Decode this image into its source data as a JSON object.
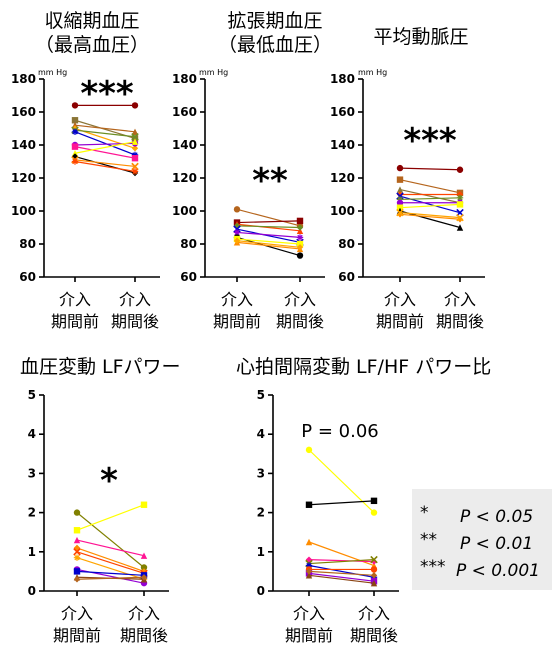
{
  "chart_data": [
    {
      "type": "line",
      "title": "収縮期血圧\n（最高血圧）",
      "unit": "mm Hg",
      "ylim": [
        60,
        180
      ],
      "yticks": [
        60,
        80,
        100,
        120,
        140,
        160,
        180
      ],
      "categories": [
        "介入\n期間前",
        "介入\n期間後"
      ],
      "significance": "***",
      "series": [
        {
          "color": "#8b0000",
          "values": [
            164,
            164
          ]
        },
        {
          "color": "#8b7536",
          "values": [
            155,
            144
          ]
        },
        {
          "color": "#b5651d",
          "values": [
            152,
            148
          ]
        },
        {
          "color": "#ffa500",
          "values": [
            150,
            138
          ]
        },
        {
          "color": "#6b8e23",
          "values": [
            149,
            145
          ]
        },
        {
          "color": "#0000cd",
          "values": [
            148,
            134
          ]
        },
        {
          "color": "#9400d3",
          "values": [
            140,
            141
          ]
        },
        {
          "color": "#ff1493",
          "values": [
            139,
            132
          ]
        },
        {
          "color": "#ffff00",
          "values": [
            135,
            142
          ]
        },
        {
          "color": "#000000",
          "values": [
            133,
            123
          ]
        },
        {
          "color": "#ff8c00",
          "values": [
            131,
            127
          ]
        },
        {
          "color": "#ff4500",
          "values": [
            130,
            124
          ]
        }
      ]
    },
    {
      "type": "line",
      "title": "拡張期血圧\n（最低血圧）",
      "unit": "mm Hg",
      "ylim": [
        60,
        180
      ],
      "yticks": [
        60,
        80,
        100,
        120,
        140,
        160,
        180
      ],
      "categories": [
        "介入\n期間前",
        "介入\n期間後"
      ],
      "significance": "**",
      "series": [
        {
          "color": "#b5651d",
          "values": [
            101,
            91
          ]
        },
        {
          "color": "#8b0000",
          "values": [
            93,
            94
          ]
        },
        {
          "color": "#ff4500",
          "values": [
            92,
            88
          ]
        },
        {
          "color": "#6b8e23",
          "values": [
            91,
            90
          ]
        },
        {
          "color": "#0000cd",
          "values": [
            89,
            81
          ]
        },
        {
          "color": "#9400d3",
          "values": [
            87,
            84
          ]
        },
        {
          "color": "#000000",
          "values": [
            84,
            73
          ]
        },
        {
          "color": "#ffff00",
          "values": [
            83,
            80
          ]
        },
        {
          "color": "#ff8c00",
          "values": [
            81,
            77
          ]
        },
        {
          "color": "#ffa500",
          "values": [
            82,
            78
          ]
        }
      ]
    },
    {
      "type": "line",
      "title": "平均動脈圧",
      "unit": "mm Hg",
      "ylim": [
        60,
        180
      ],
      "yticks": [
        60,
        80,
        100,
        120,
        140,
        160,
        180
      ],
      "categories": [
        "介入\n期間前",
        "介入\n期間後"
      ],
      "significance": "***",
      "series": [
        {
          "color": "#8b0000",
          "values": [
            126,
            125
          ]
        },
        {
          "color": "#b5651d",
          "values": [
            119,
            111
          ]
        },
        {
          "color": "#8b7536",
          "values": [
            113,
            105
          ]
        },
        {
          "color": "#ff4500",
          "values": [
            110,
            110
          ]
        },
        {
          "color": "#0000cd",
          "values": [
            109,
            99
          ]
        },
        {
          "color": "#6b8e23",
          "values": [
            107,
            108
          ]
        },
        {
          "color": "#9400d3",
          "values": [
            105,
            105
          ]
        },
        {
          "color": "#ffff00",
          "values": [
            102,
            104
          ]
        },
        {
          "color": "#000000",
          "values": [
            100,
            90
          ]
        },
        {
          "color": "#ff8c00",
          "values": [
            98,
            95
          ]
        },
        {
          "color": "#ffa500",
          "values": [
            99,
            96
          ]
        }
      ]
    },
    {
      "type": "line",
      "title": "血圧変動 LFパワー",
      "ylim": [
        0,
        5
      ],
      "yticks": [
        0,
        1,
        2,
        3,
        4,
        5
      ],
      "categories": [
        "介入\n期間前",
        "介入\n期間後"
      ],
      "significance": "*",
      "series": [
        {
          "color": "#808000",
          "values": [
            2.0,
            0.6
          ]
        },
        {
          "color": "#ffff00",
          "values": [
            1.55,
            2.2
          ]
        },
        {
          "color": "#ff1493",
          "values": [
            1.3,
            0.9
          ]
        },
        {
          "color": "#ff8c00",
          "values": [
            1.1,
            0.5
          ]
        },
        {
          "color": "#ff4500",
          "values": [
            1.0,
            0.45
          ]
        },
        {
          "color": "#ffa500",
          "values": [
            0.85,
            0.3
          ]
        },
        {
          "color": "#9400d3",
          "values": [
            0.55,
            0.2
          ]
        },
        {
          "color": "#0000cd",
          "values": [
            0.5,
            0.4
          ]
        },
        {
          "color": "#8b4513",
          "values": [
            0.35,
            0.3
          ]
        },
        {
          "color": "#b5651d",
          "values": [
            0.3,
            0.35
          ]
        }
      ]
    },
    {
      "type": "line",
      "title": "心拍間隔変動 LF/HF パワー比",
      "ylim": [
        0,
        5
      ],
      "yticks": [
        0,
        1,
        2,
        3,
        4,
        5
      ],
      "categories": [
        "介入\n期間前",
        "介入\n期間後"
      ],
      "annotation": "P = 0.06",
      "series": [
        {
          "color": "#ffff00",
          "values": [
            3.6,
            2.0
          ]
        },
        {
          "color": "#000000",
          "values": [
            2.2,
            2.3
          ]
        },
        {
          "color": "#ff8c00",
          "values": [
            1.25,
            0.65
          ]
        },
        {
          "color": "#ff1493",
          "values": [
            0.8,
            0.75
          ]
        },
        {
          "color": "#808000",
          "values": [
            0.7,
            0.8
          ]
        },
        {
          "color": "#0000cd",
          "values": [
            0.65,
            0.35
          ]
        },
        {
          "color": "#ff4500",
          "values": [
            0.55,
            0.55
          ]
        },
        {
          "color": "#9400d3",
          "values": [
            0.45,
            0.25
          ]
        },
        {
          "color": "#8b4513",
          "values": [
            0.4,
            0.2
          ]
        },
        {
          "color": "#b5651d",
          "values": [
            0.5,
            0.4
          ]
        }
      ]
    }
  ],
  "legend": [
    {
      "stars": "*",
      "text": "P < 0.05"
    },
    {
      "stars": "**",
      "text": "P < 0.01"
    },
    {
      "stars": "***",
      "text": "P < 0.001"
    }
  ]
}
